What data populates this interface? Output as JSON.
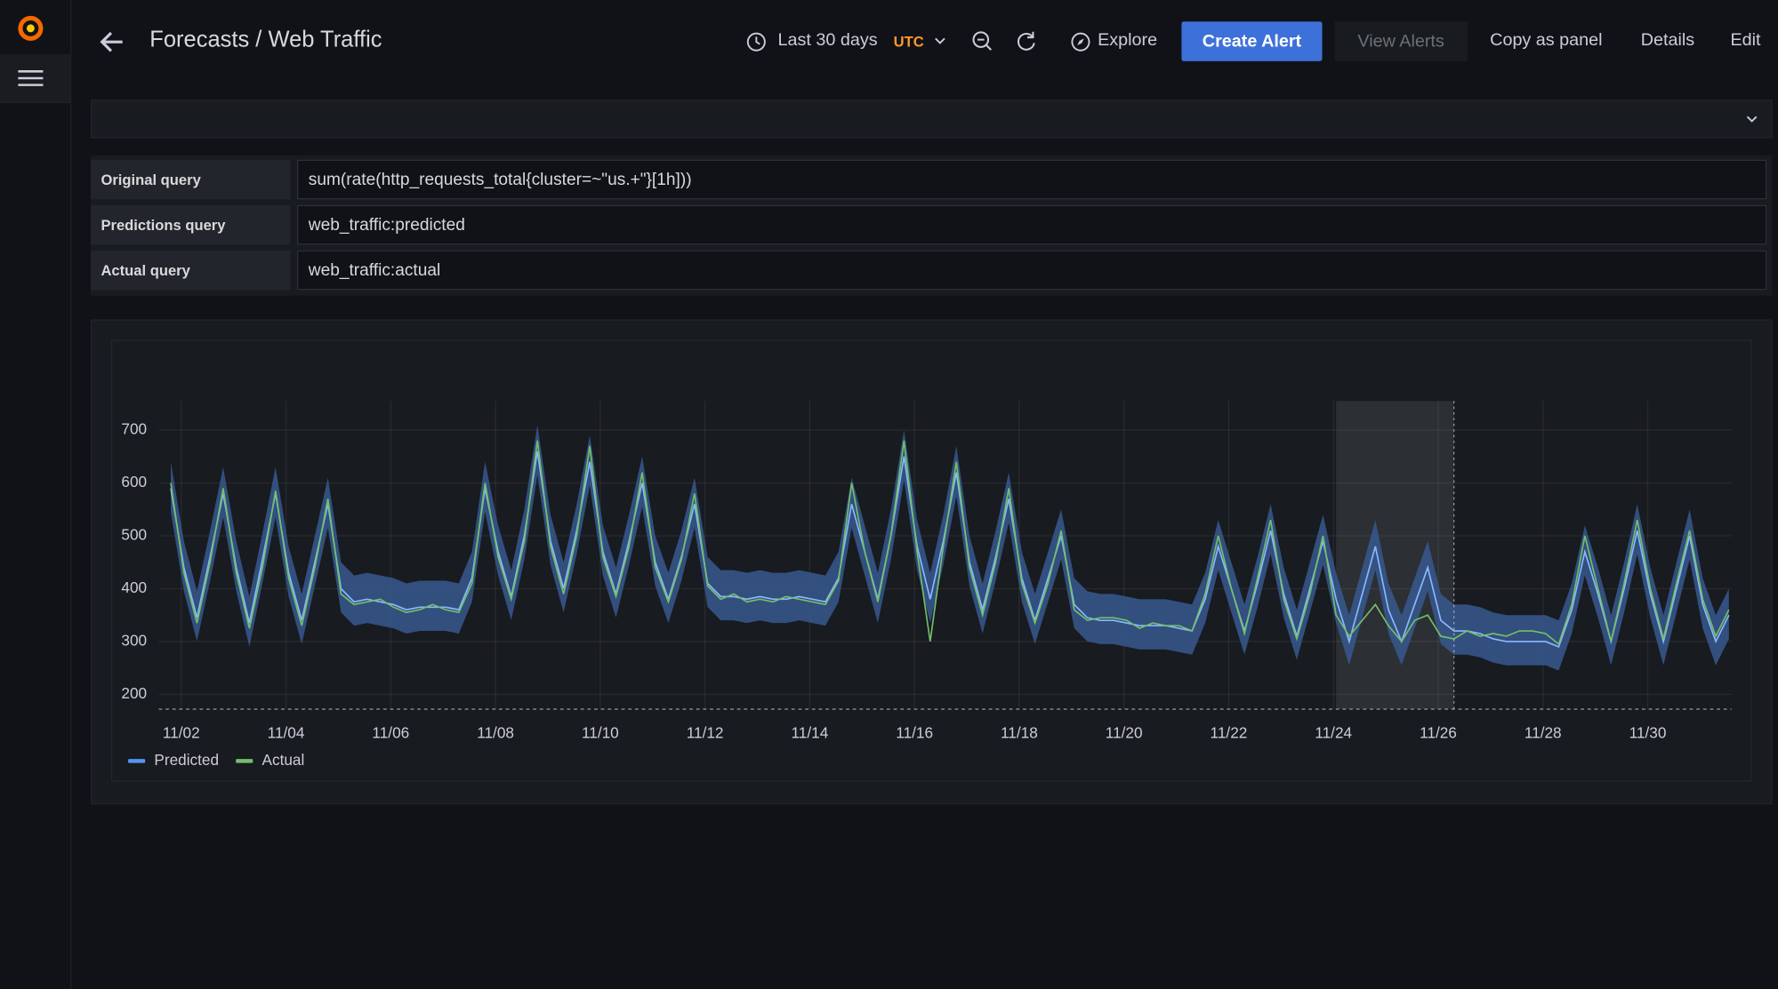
{
  "header": {
    "title": "Forecasts / Web Traffic",
    "time_range": "Last 30 days",
    "timezone": "UTC",
    "buttons": [
      "Explore",
      "Create Alert",
      "View Alerts",
      "Copy as panel",
      "Details",
      "Edit"
    ]
  },
  "queries": [
    {
      "label": "Original query",
      "value": "sum(rate(http_requests_total{cluster=~\"us.+\"}[1h]))"
    },
    {
      "label": "Predictions query",
      "value": "web_traffic:predicted"
    },
    {
      "label": "Actual query",
      "value": "web_traffic:actual"
    }
  ],
  "chart_data": {
    "type": "line",
    "grid": true,
    "legend": "bottom-left",
    "xlim": [
      1.57,
      31.6
    ],
    "ylim": [
      172,
      755
    ],
    "xticks": [
      {
        "value": 2,
        "label": "11/02"
      },
      {
        "value": 4,
        "label": "11/04"
      },
      {
        "value": 6,
        "label": "11/06"
      },
      {
        "value": 8,
        "label": "11/08"
      },
      {
        "value": 10,
        "label": "11/10"
      },
      {
        "value": 12,
        "label": "11/12"
      },
      {
        "value": 14,
        "label": "11/14"
      },
      {
        "value": 16,
        "label": "11/16"
      },
      {
        "value": 18,
        "label": "11/18"
      },
      {
        "value": 20,
        "label": "11/20"
      },
      {
        "value": 22,
        "label": "11/22"
      },
      {
        "value": 24,
        "label": "11/24"
      },
      {
        "value": 26,
        "label": "11/26"
      },
      {
        "value": 28,
        "label": "11/28"
      },
      {
        "value": 30,
        "label": "11/30"
      }
    ],
    "yticks": [
      200,
      300,
      400,
      500,
      600,
      700
    ],
    "highlight": {
      "from": 24.05,
      "to": 26.3
    },
    "x": [
      1.8,
      2.05,
      2.3,
      2.55,
      2.8,
      3.05,
      3.3,
      3.55,
      3.8,
      4.05,
      4.3,
      4.55,
      4.8,
      5.05,
      5.3,
      5.55,
      5.8,
      6.05,
      6.3,
      6.55,
      6.8,
      7.05,
      7.3,
      7.55,
      7.8,
      8.05,
      8.3,
      8.55,
      8.8,
      9.05,
      9.3,
      9.55,
      9.8,
      10.05,
      10.3,
      10.55,
      10.8,
      11.05,
      11.3,
      11.55,
      11.8,
      12.05,
      12.3,
      12.55,
      12.8,
      13.05,
      13.3,
      13.55,
      13.8,
      14.05,
      14.3,
      14.55,
      14.8,
      15.05,
      15.3,
      15.55,
      15.8,
      16.05,
      16.3,
      16.55,
      16.8,
      17.05,
      17.3,
      17.55,
      17.8,
      18.05,
      18.3,
      18.55,
      18.8,
      19.05,
      19.3,
      19.55,
      19.8,
      20.05,
      20.3,
      20.55,
      20.8,
      21.05,
      21.3,
      21.55,
      21.8,
      22.05,
      22.3,
      22.55,
      22.8,
      23.05,
      23.3,
      23.55,
      23.8,
      24.05,
      24.3,
      24.55,
      24.8,
      25.05,
      25.3,
      25.55,
      25.8,
      26.05,
      26.3,
      26.55,
      26.8,
      27.05,
      27.3,
      27.55,
      27.8,
      28.05,
      28.3,
      28.55,
      28.8,
      29.05,
      29.3,
      29.55,
      29.8,
      30.05,
      30.3,
      30.55,
      30.8,
      31.05,
      31.3,
      31.55
    ],
    "band": {
      "color": "#37588f",
      "lower": [
        545,
        395,
        300,
        415,
        535,
        395,
        290,
        410,
        535,
        385,
        295,
        405,
        515,
        355,
        330,
        335,
        330,
        325,
        315,
        320,
        320,
        320,
        315,
        375,
        545,
        425,
        340,
        455,
        615,
        445,
        355,
        465,
        595,
        425,
        345,
        445,
        555,
        405,
        335,
        415,
        515,
        365,
        340,
        340,
        335,
        340,
        335,
        335,
        340,
        335,
        330,
        375,
        515,
        425,
        335,
        455,
        605,
        435,
        335,
        445,
        575,
        405,
        315,
        415,
        525,
        375,
        295,
        375,
        455,
        325,
        300,
        295,
        295,
        290,
        285,
        285,
        285,
        280,
        275,
        335,
        435,
        355,
        275,
        365,
        465,
        345,
        265,
        355,
        445,
        335,
        255,
        345,
        435,
        315,
        255,
        325,
        395,
        295,
        275,
        275,
        270,
        260,
        255,
        255,
        255,
        255,
        245,
        315,
        425,
        345,
        255,
        355,
        465,
        345,
        255,
        355,
        455,
        325,
        255,
        305
      ],
      "upper": [
        640,
        490,
        395,
        510,
        630,
        490,
        385,
        505,
        630,
        480,
        390,
        500,
        610,
        450,
        425,
        430,
        425,
        420,
        410,
        415,
        415,
        415,
        410,
        470,
        640,
        520,
        435,
        550,
        710,
        540,
        450,
        560,
        690,
        520,
        440,
        540,
        650,
        500,
        430,
        510,
        610,
        460,
        435,
        435,
        430,
        435,
        430,
        430,
        435,
        430,
        425,
        470,
        610,
        520,
        430,
        550,
        700,
        530,
        430,
        540,
        670,
        500,
        410,
        510,
        620,
        470,
        390,
        470,
        550,
        420,
        395,
        390,
        390,
        385,
        380,
        380,
        380,
        375,
        370,
        430,
        530,
        450,
        370,
        460,
        560,
        440,
        360,
        450,
        540,
        430,
        350,
        440,
        530,
        410,
        350,
        420,
        490,
        390,
        370,
        370,
        365,
        355,
        350,
        350,
        350,
        350,
        340,
        410,
        520,
        440,
        350,
        450,
        560,
        440,
        350,
        450,
        550,
        420,
        350,
        400
      ]
    },
    "series": [
      {
        "name": "Predicted",
        "color": "#8ab8ff",
        "legend_color": "#5794f2",
        "values": [
          590,
          440,
          345,
          460,
          580,
          440,
          335,
          455,
          580,
          430,
          340,
          450,
          560,
          400,
          375,
          380,
          375,
          370,
          360,
          365,
          365,
          365,
          360,
          420,
          590,
          470,
          385,
          500,
          660,
          490,
          400,
          510,
          640,
          470,
          390,
          490,
          600,
          450,
          380,
          460,
          560,
          410,
          385,
          385,
          380,
          385,
          380,
          380,
          385,
          380,
          375,
          420,
          560,
          470,
          380,
          500,
          650,
          480,
          380,
          490,
          620,
          450,
          360,
          460,
          570,
          420,
          340,
          420,
          500,
          370,
          345,
          340,
          340,
          335,
          330,
          330,
          330,
          325,
          320,
          380,
          480,
          400,
          320,
          410,
          510,
          390,
          310,
          400,
          490,
          380,
          300,
          390,
          480,
          360,
          300,
          370,
          440,
          340,
          320,
          320,
          315,
          305,
          300,
          300,
          300,
          300,
          290,
          360,
          470,
          390,
          300,
          400,
          510,
          390,
          300,
          400,
          500,
          370,
          300,
          350
        ]
      },
      {
        "name": "Actual",
        "color": "#73bf69",
        "legend_color": "#73bf69",
        "values": [
          600,
          430,
          335,
          450,
          590,
          430,
          325,
          440,
          585,
          420,
          330,
          440,
          570,
          390,
          370,
          375,
          380,
          365,
          355,
          360,
          370,
          360,
          355,
          410,
          600,
          460,
          380,
          490,
          680,
          480,
          390,
          500,
          670,
          460,
          385,
          480,
          620,
          440,
          375,
          455,
          580,
          405,
          380,
          390,
          375,
          380,
          375,
          385,
          380,
          375,
          370,
          415,
          600,
          470,
          375,
          500,
          680,
          470,
          300,
          480,
          640,
          440,
          350,
          450,
          590,
          410,
          335,
          410,
          510,
          360,
          340,
          345,
          345,
          340,
          325,
          335,
          330,
          330,
          320,
          390,
          500,
          400,
          315,
          420,
          530,
          380,
          305,
          390,
          500,
          350,
          310,
          340,
          370,
          330,
          300,
          340,
          350,
          310,
          305,
          320,
          310,
          315,
          310,
          320,
          320,
          315,
          295,
          370,
          500,
          400,
          300,
          410,
          530,
          400,
          305,
          410,
          510,
          380,
          310,
          360
        ]
      }
    ]
  }
}
